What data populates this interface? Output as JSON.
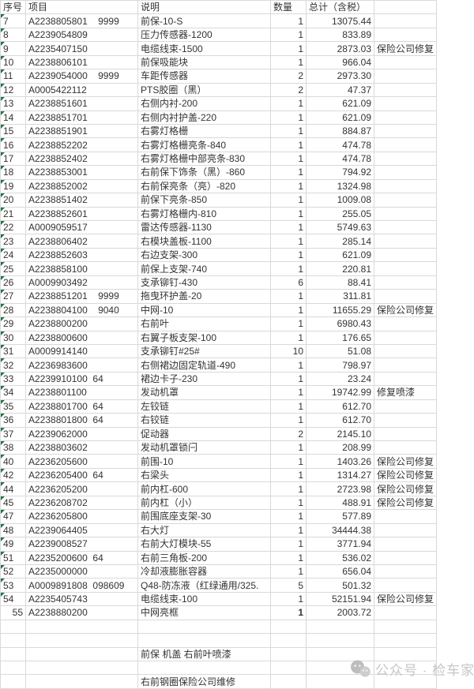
{
  "colors": {
    "grid_line": "#d9d9d9",
    "text": "#333333",
    "error_triangle_green": "#217346",
    "watermark_gray": "#c6c6c6",
    "background": "#ffffff"
  },
  "watermark": {
    "icon": "wechat-icon",
    "text": "公众号 · 检车家"
  },
  "table": {
    "headers": [
      "序号",
      "项目",
      "说明",
      "数量",
      "总计（含税）",
      ""
    ],
    "rows": [
      {
        "no": "7",
        "code": "A2238805801    9999",
        "desc": "前保-10-S",
        "qty": "1",
        "total": "13075.44",
        "note": ""
      },
      {
        "no": "8",
        "code": "A2239054809",
        "desc": "压力传感器-1200",
        "qty": "1",
        "total": "833.89",
        "note": ""
      },
      {
        "no": "9",
        "code": "A2235407150",
        "desc": "电缆线束-1500",
        "qty": "1",
        "total": "2873.03",
        "note": "保险公司修复"
      },
      {
        "no": "10",
        "code": "A2238806101",
        "desc": "前保吸能块",
        "qty": "1",
        "total": "966.04",
        "note": ""
      },
      {
        "no": "11",
        "code": "A2239054000    9999",
        "desc": "车距传感器",
        "qty": "2",
        "total": "2973.30",
        "note": ""
      },
      {
        "no": "12",
        "code": "A0005422112",
        "desc": "PTS胶圈（黑）",
        "qty": "2",
        "total": "47.37",
        "note": ""
      },
      {
        "no": "13",
        "code": "A2238851601",
        "desc": "右侧内衬-200",
        "qty": "1",
        "total": "621.09",
        "note": ""
      },
      {
        "no": "14",
        "code": "A2238851701",
        "desc": "右侧内衬护盖-220",
        "qty": "1",
        "total": "621.09",
        "note": ""
      },
      {
        "no": "15",
        "code": "A2238851901",
        "desc": "右雾灯格栅",
        "qty": "1",
        "total": "884.87",
        "note": ""
      },
      {
        "no": "16",
        "code": "A2238852202",
        "desc": "右雾灯格栅亮条-840",
        "qty": "1",
        "total": "474.78",
        "note": ""
      },
      {
        "no": "17",
        "code": "A2238852402",
        "desc": "右雾灯格栅中部亮条-830",
        "qty": "1",
        "total": "474.78",
        "note": ""
      },
      {
        "no": "18",
        "code": "A2238853001",
        "desc": "右前保下饰条（黑）-860",
        "qty": "1",
        "total": "794.92",
        "note": ""
      },
      {
        "no": "19",
        "code": "A2238852002",
        "desc": "右前保亮条（亮）-820",
        "qty": "1",
        "total": "1324.98",
        "note": ""
      },
      {
        "no": "20",
        "code": "A2238851402",
        "desc": "前保下亮条-850",
        "qty": "1",
        "total": "1009.08",
        "note": ""
      },
      {
        "no": "21",
        "code": "A2238852601",
        "desc": "右雾灯格栅内-810",
        "qty": "1",
        "total": "255.05",
        "note": ""
      },
      {
        "no": "22",
        "code": "A0009059517",
        "desc": "雷达传感器-1130",
        "qty": "1",
        "total": "5749.63",
        "note": ""
      },
      {
        "no": "23",
        "code": "A2238806402",
        "desc": "右模块盖板-1100",
        "qty": "1",
        "total": "285.14",
        "note": ""
      },
      {
        "no": "24",
        "code": "A2238852603",
        "desc": "右边支架-300",
        "qty": "1",
        "total": "621.09",
        "note": ""
      },
      {
        "no": "25",
        "code": "A2238858100",
        "desc": "前保上支架-740",
        "qty": "1",
        "total": "220.81",
        "note": ""
      },
      {
        "no": "26",
        "code": "A0009903492",
        "desc": "支承铆钉-430",
        "qty": "6",
        "total": "88.41",
        "note": ""
      },
      {
        "no": "27",
        "code": "A2238851201    9999",
        "desc": "拖曳环护盖-20",
        "qty": "1",
        "total": "311.81",
        "note": ""
      },
      {
        "no": "28",
        "code": "A2238804100    9040",
        "desc": "中网-10",
        "qty": "1",
        "total": "11655.29",
        "note": "保险公司修复"
      },
      {
        "no": "29",
        "code": "A2238800200",
        "desc": "右前叶",
        "qty": "1",
        "total": "6980.43",
        "note": ""
      },
      {
        "no": "30",
        "code": "A2238800600",
        "desc": "右翼子板支架-100",
        "qty": "1",
        "total": "176.65",
        "note": ""
      },
      {
        "no": "31",
        "code": "A0009914140",
        "desc": "支承铆钉#25#",
        "qty": "10",
        "total": "51.08",
        "note": ""
      },
      {
        "no": "32",
        "code": "A2236983600",
        "desc": "右侧裙边固定轨道-490",
        "qty": "1",
        "total": "798.97",
        "note": ""
      },
      {
        "no": "33",
        "code": "A2239910100  64",
        "desc": "裙边卡子-230",
        "qty": "1",
        "total": "23.24",
        "note": ""
      },
      {
        "no": "34",
        "code": "A2238801100",
        "desc": "发动机罩",
        "qty": "1",
        "total": "19742.99",
        "note": "修复喷漆"
      },
      {
        "no": "35",
        "code": "A2238801700  64",
        "desc": "左铰链",
        "qty": "1",
        "total": "612.70",
        "note": ""
      },
      {
        "no": "36",
        "code": "A2238801800  64",
        "desc": "右铰链",
        "qty": "1",
        "total": "612.70",
        "note": ""
      },
      {
        "no": "37",
        "code": "A2239062000",
        "desc": "促动器",
        "qty": "2",
        "total": "2145.10",
        "note": ""
      },
      {
        "no": "38",
        "code": "A2238803602",
        "desc": "发动机罩锁闩",
        "qty": "1",
        "total": "208.99",
        "note": ""
      },
      {
        "no": "40",
        "code": "A2236205600",
        "desc": "前围-10",
        "qty": "1",
        "total": "1403.26",
        "note": "保险公司修复"
      },
      {
        "no": "42",
        "code": "A2236205400  64",
        "desc": "右梁头",
        "qty": "1",
        "total": "1314.27",
        "note": "保险公司修复"
      },
      {
        "no": "44",
        "code": "A2236205200",
        "desc": "前内杠-600",
        "qty": "1",
        "total": "2723.98",
        "note": "保险公司修复"
      },
      {
        "no": "45",
        "code": "A2236208702",
        "desc": "前内杠（小）",
        "qty": "1",
        "total": "488.91",
        "note": "保险公司修复"
      },
      {
        "no": "47",
        "code": "A2236205800",
        "desc": "前围底座支架-30",
        "qty": "1",
        "total": "577.89",
        "note": ""
      },
      {
        "no": "48",
        "code": "A2239064405",
        "desc": "右大灯",
        "qty": "1",
        "total": "34444.38",
        "note": ""
      },
      {
        "no": "49",
        "code": "A2239008527",
        "desc": "右前大灯模块-55",
        "qty": "1",
        "total": "3771.94",
        "note": ""
      },
      {
        "no": "51",
        "code": "A2235200600  64",
        "desc": "右前三角板-200",
        "qty": "1",
        "total": "536.02",
        "note": ""
      },
      {
        "no": "52",
        "code": "A2235000000",
        "desc": "冷却液膨胀容器",
        "qty": "1",
        "total": "656.04",
        "note": ""
      },
      {
        "no": "53",
        "code": "A0009891808  098609",
        "desc": "Q48-防冻液（红绿通用/325.",
        "qty": "5",
        "total": "501.32",
        "note": ""
      },
      {
        "no": "54",
        "code": "A2235405743",
        "desc": "电缆线束-100",
        "qty": "1",
        "total": "52151.94",
        "note": "保险公司修复"
      },
      {
        "no": "55",
        "code": "A2238880200",
        "desc": "中网亮框",
        "qty": "1",
        "total": "2003.72",
        "note": "",
        "marker": false,
        "no_align": "right",
        "qty_bold": true
      },
      {
        "no": "",
        "code": "",
        "desc": "",
        "qty": "",
        "total": "",
        "note": "",
        "marker": false
      },
      {
        "no": "",
        "code": "",
        "desc": "",
        "qty": "",
        "total": "",
        "note": "",
        "marker": false
      },
      {
        "no": "",
        "code": "",
        "desc": "前保 机盖 右前叶喷漆",
        "qty": "",
        "total": "",
        "note": "",
        "marker": false
      },
      {
        "no": "",
        "code": "",
        "desc": "",
        "qty": "",
        "total": "",
        "note": "",
        "marker": false
      },
      {
        "no": "",
        "code": "",
        "desc": "右前钢圈保险公司维修",
        "qty": "",
        "total": "",
        "note": "",
        "marker": false
      }
    ]
  }
}
